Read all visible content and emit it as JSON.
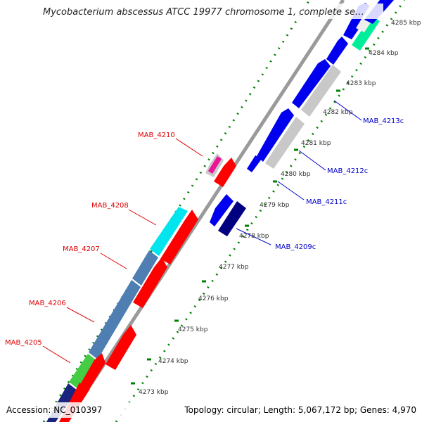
{
  "title": "Mycobacterium abscessus ATCC 19977 chromosome 1, complete se…",
  "footer": {
    "accession": "Accession: NC_010397",
    "topology": "Topology: circular; Length: 5,067,172 bp; Genes: 4,970"
  },
  "colors": {
    "backbone": "#9a9a9a",
    "ticks": "#008000",
    "forward_label": "#dd0000",
    "reverse_label": "#0000cc"
  },
  "ticks": [
    {
      "label": "4273 kbp"
    },
    {
      "label": "4274 kbp"
    },
    {
      "label": "4275 kbp"
    },
    {
      "label": "4276 kbp"
    },
    {
      "label": "4277 kbp"
    },
    {
      "label": "4278 kbp"
    },
    {
      "label": "4279 kbp"
    },
    {
      "label": "4280 kbp"
    },
    {
      "label": "4281 kbp"
    },
    {
      "label": "4282 kbp"
    },
    {
      "label": "4283 kbp"
    },
    {
      "label": "4284 kbp"
    },
    {
      "label": "4285 kbp"
    }
  ],
  "gene_labels": [
    {
      "text": "MAB_4205",
      "strand": "forward"
    },
    {
      "text": "MAB_4206",
      "strand": "forward"
    },
    {
      "text": "MAB_4207",
      "strand": "forward"
    },
    {
      "text": "MAB_4208",
      "strand": "forward"
    },
    {
      "text": "MAB_4210",
      "strand": "forward"
    },
    {
      "text": "MAB_4209c",
      "strand": "reverse"
    },
    {
      "text": "MAB_4211c",
      "strand": "reverse"
    },
    {
      "text": "MAB_4212c",
      "strand": "reverse"
    },
    {
      "text": "MAB_4213c",
      "strand": "reverse"
    }
  ]
}
